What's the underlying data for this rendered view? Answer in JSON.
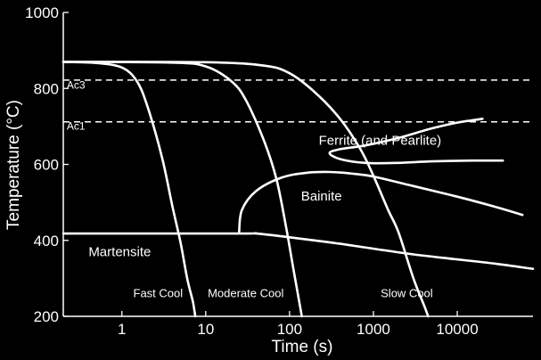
{
  "chart_data": {
    "type": "line",
    "title": "",
    "xlabel": "Time (s)",
    "ylabel": "Temperature (°C)",
    "xscale": "log",
    "xlim": [
      0.2,
      80000
    ],
    "ylim": [
      200,
      1000
    ],
    "xticks": [
      {
        "value": 1,
        "label": "1"
      },
      {
        "value": 10,
        "label": "10"
      },
      {
        "value": 100,
        "label": "100"
      },
      {
        "value": 1000,
        "label": "1000"
      },
      {
        "value": 10000,
        "label": "10000"
      }
    ],
    "yticks": [
      {
        "value": 200,
        "label": "200"
      },
      {
        "value": 400,
        "label": "400"
      },
      {
        "value": 600,
        "label": "600"
      },
      {
        "value": 800,
        "label": "800"
      },
      {
        "value": 1000,
        "label": "1000"
      }
    ],
    "grid": false,
    "reference_lines": [
      {
        "label": "Ac3",
        "y": 822
      },
      {
        "label": "Ac1",
        "y": 712
      }
    ],
    "series": [
      {
        "label": "Fast Cool",
        "points": [
          [
            0.2,
            870
          ],
          [
            0.5,
            867
          ],
          [
            1,
            855
          ],
          [
            1.5,
            820
          ],
          [
            2,
            755
          ],
          [
            3,
            620
          ],
          [
            4,
            490
          ],
          [
            5,
            395
          ],
          [
            6,
            300
          ],
          [
            7,
            240
          ],
          [
            7.5,
            200
          ]
        ]
      },
      {
        "label": "Moderate Cool",
        "points": [
          [
            0.2,
            870
          ],
          [
            4,
            868
          ],
          [
            10,
            858
          ],
          [
            20,
            820
          ],
          [
            30,
            770
          ],
          [
            50,
            660
          ],
          [
            70,
            560
          ],
          [
            90,
            440
          ],
          [
            110,
            330
          ],
          [
            130,
            240
          ],
          [
            140,
            200
          ]
        ]
      },
      {
        "label": "Slow Cool",
        "points": [
          [
            0.2,
            870
          ],
          [
            10,
            869
          ],
          [
            50,
            860
          ],
          [
            100,
            840
          ],
          [
            200,
            790
          ],
          [
            400,
            720
          ],
          [
            700,
            640
          ],
          [
            1000,
            570
          ],
          [
            1500,
            480
          ],
          [
            2000,
            420
          ],
          [
            3000,
            300
          ],
          [
            4000,
            230
          ],
          [
            4500,
            200
          ]
        ]
      },
      {
        "points": [
          [
            20000,
            720
          ],
          [
            10000,
            710
          ],
          [
            5000,
            695
          ],
          [
            2000,
            670
          ],
          [
            800,
            650
          ],
          [
            400,
            640
          ],
          [
            300,
            630
          ],
          [
            400,
            614
          ],
          [
            800,
            604
          ],
          [
            2000,
            604
          ],
          [
            5000,
            608
          ],
          [
            15000,
            610
          ],
          [
            35000,
            610
          ]
        ]
      },
      {
        "points": [
          [
            25,
            422
          ],
          [
            27,
            480
          ],
          [
            40,
            530
          ],
          [
            80,
            565
          ],
          [
            160,
            578
          ],
          [
            300,
            580
          ],
          [
            600,
            575
          ],
          [
            1000,
            568
          ],
          [
            3000,
            543
          ],
          [
            10000,
            515
          ],
          [
            30000,
            487
          ],
          [
            60000,
            467
          ]
        ]
      },
      {
        "points": [
          [
            0.2,
            418
          ],
          [
            25,
            418
          ],
          [
            40,
            418
          ],
          [
            100,
            408
          ],
          [
            300,
            395
          ],
          [
            1000,
            378
          ],
          [
            3000,
            363
          ],
          [
            10000,
            350
          ],
          [
            30000,
            338
          ],
          [
            80000,
            325
          ]
        ]
      }
    ],
    "region_labels": [
      {
        "text": "Ferrite (and Pearlite)",
        "x": 1200,
        "y": 652
      },
      {
        "text": "Bainite",
        "x": 240,
        "y": 505
      },
      {
        "text": "Martensite",
        "x": 0.4,
        "y": 358
      },
      {
        "text": "Fast Cool",
        "x": 2.7,
        "y": 250
      },
      {
        "text": "Moderate Cool",
        "x": 30,
        "y": 250
      },
      {
        "text": "Slow Cool",
        "x": 2500,
        "y": 250
      },
      {
        "text": "Ac3",
        "x": 0.22,
        "y": 800
      },
      {
        "text": "Ac1",
        "x": 0.22,
        "y": 692
      }
    ],
    "colors": {
      "background": "#000000",
      "foreground": "#ffffff"
    }
  }
}
